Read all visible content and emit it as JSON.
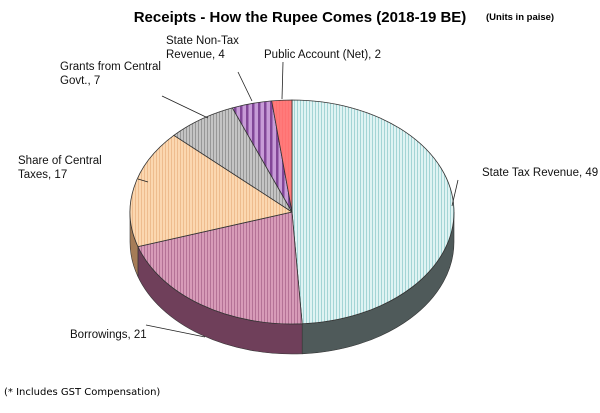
{
  "chart_data": {
    "type": "pie",
    "title": "Receipts - How the Rupee Comes (2018-19 BE)",
    "unit_note": "(Units in paise)",
    "footnote": "(* Includes GST Compensation)",
    "slices": [
      {
        "label_lines": [
          "State Tax Revenue, 49"
        ],
        "value": 49,
        "color": "#dff3f3",
        "stripe": "#8ec9cb",
        "side": "#4f5a5a"
      },
      {
        "label_lines": [
          "Borrowings, 21"
        ],
        "value": 21,
        "color": "#d79bb8",
        "stripe": "#a8648a",
        "side": "#6f3f5a"
      },
      {
        "label_lines": [
          "Share of Central",
          "Taxes, 17"
        ],
        "value": 17,
        "color": "#fbd7b0",
        "stripe": "#e9b282",
        "side": "#a57c57"
      },
      {
        "label_lines": [
          "Grants from Central",
          "Govt., 7"
        ],
        "value": 7,
        "color": "#c4c4c4",
        "stripe": "#888888",
        "side": "#5c5c5c"
      },
      {
        "label_lines": [
          "State Non-Tax",
          "Revenue, 4"
        ],
        "value": 4,
        "color": "#c79bd7",
        "stripe": "#6b2a82",
        "side": "#4b1c5c"
      },
      {
        "label_lines": [
          "Public Account (Net), 2"
        ],
        "value": 2,
        "color": "#ff7a7a",
        "stripe": "#ff6262",
        "side": "#a33b3b"
      }
    ]
  }
}
